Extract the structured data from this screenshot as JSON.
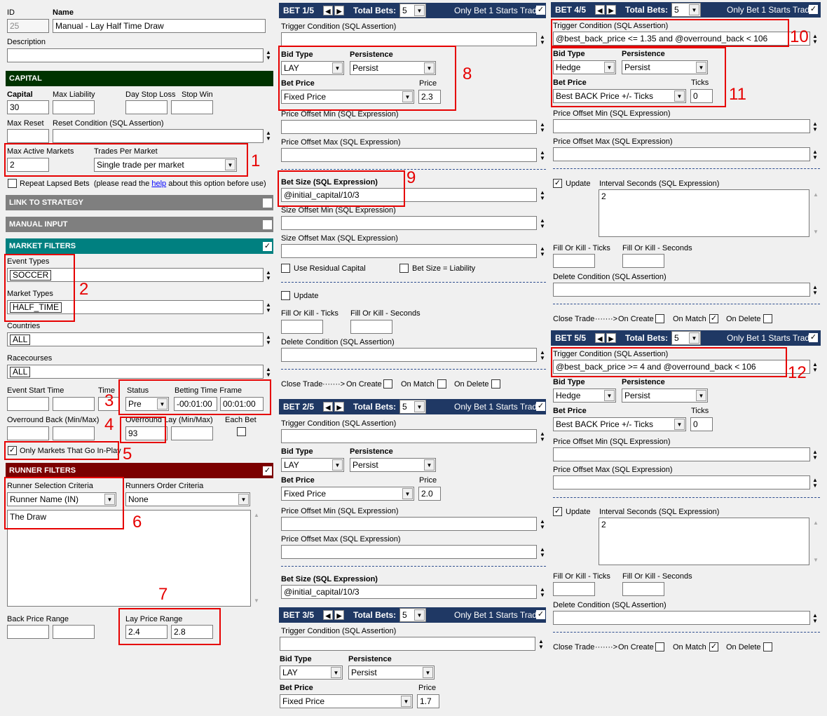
{
  "strategy": {
    "id_label": "ID",
    "id_value": "25",
    "name_label": "Name",
    "name_value": "Manual - Lay Half Time Draw",
    "description_label": "Description",
    "description_value": ""
  },
  "capital": {
    "header": "CAPITAL",
    "capital_label": "Capital",
    "capital_value": "30",
    "max_liability_label": "Max Liability",
    "day_stop_loss_label": "Day Stop Loss",
    "stop_win_label": "Stop Win",
    "max_reset_label": "Max Reset",
    "reset_condition_label": "Reset Condition (SQL Assertion)",
    "max_active_markets_label": "Max Active Markets",
    "max_active_markets_value": "2",
    "trades_per_market_label": "Trades Per Market",
    "trades_per_market_value": "Single trade per market",
    "repeat_label": "Repeat Lapsed Bets",
    "repeat_note_pre": "(please read the",
    "repeat_note_link": "help",
    "repeat_note_post": "about this option before use)"
  },
  "link_header": "LINK TO STRATEGY",
  "manual_header": "MANUAL INPUT",
  "market_filters": {
    "header": "MARKET FILTERS",
    "event_types_label": "Event Types",
    "event_types_value": "SOCCER",
    "market_types_label": "Market Types",
    "market_types_value": "HALF_TIME",
    "countries_label": "Countries",
    "countries_value": "ALL",
    "racecourses_label": "Racecourses",
    "racecourses_value": "ALL",
    "event_start_label": "Event Start Time",
    "time_label": "Time",
    "status_label": "Status",
    "status_value": "Pre",
    "btf_label": "Betting Time Frame",
    "btf_from": "-00:01:00",
    "btf_to": "00:01:00",
    "overround_back_label": "Overround Back (Min/Max)",
    "overround_lay_label": "Overround Lay (Min/Max)",
    "overround_lay_min": "93",
    "each_bet_label": "Each Bet",
    "inplay_label": "Only Markets That Go In-Play"
  },
  "runner_filters": {
    "header": "RUNNER FILTERS",
    "selection_label": "Runner Selection Criteria",
    "selection_value": "Runner Name (IN)",
    "order_label": "Runners Order Criteria",
    "order_value": "None",
    "runners_text": "The Draw",
    "back_range_label": "Back Price Range",
    "lay_range_label": "Lay Price Range",
    "lay_min": "2.4",
    "lay_max": "2.8"
  },
  "common": {
    "total_bets_label": "Total Bets:",
    "total_bets_value": "5",
    "only_bet1": "Only Bet 1 Starts Trade",
    "trigger_label": "Trigger Condition (SQL Assertion)",
    "bid_type_label": "Bid Type",
    "persistence_label": "Persistence",
    "bet_price_label": "Bet Price",
    "price_label": "Price",
    "ticks_label": "Ticks",
    "offset_min_label": "Price Offset Min (SQL Expression)",
    "offset_max_label": "Price Offset Max (SQL Expression)",
    "bet_size_label": "Bet Size (SQL Expression)",
    "size_min_label": "Size Offset Min (SQL Expression)",
    "size_max_label": "Size Offset Max (SQL Expression)",
    "residual_label": "Use Residual Capital",
    "liability_label": "Bet Size = Liability",
    "update_label": "Update",
    "interval_label": "Interval Seconds (SQL Expression)",
    "fok_ticks_label": "Fill Or Kill - Ticks",
    "fok_seconds_label": "Fill Or Kill - Seconds",
    "delete_label": "Delete Condition (SQL Assertion)",
    "close_trade_label": "Close Trade",
    "arrow_dots": "·······>",
    "on_create_label": "On Create",
    "on_match_label": "On Match",
    "on_delete_label": "On Delete"
  },
  "bet1": {
    "title": "BET 1/5",
    "bid_type": "LAY",
    "persistence": "Persist",
    "bet_price": "Fixed Price",
    "price": "2.3",
    "bet_size": "@initial_capital/10/3"
  },
  "bet2": {
    "title": "BET 2/5",
    "bid_type": "LAY",
    "persistence": "Persist",
    "bet_price": "Fixed Price",
    "price": "2.0",
    "bet_size": "@initial_capital/10/3"
  },
  "bet3": {
    "title": "BET 3/5",
    "bid_type": "LAY",
    "persistence": "Persist",
    "bet_price": "Fixed Price",
    "price": "1.7"
  },
  "bet4": {
    "title": "BET 4/5",
    "trigger": "@best_back_price <= 1.35 and @overround_back < 106",
    "bid_type": "Hedge",
    "persistence": "Persist",
    "bet_price": "Best BACK Price +/- Ticks",
    "ticks": "0",
    "interval": "2"
  },
  "bet5": {
    "title": "BET 5/5",
    "trigger": "@best_back_price >= 4 and @overround_back < 106",
    "bid_type": "Hedge",
    "persistence": "Persist",
    "bet_price": "Best BACK Price +/- Ticks",
    "ticks": "0",
    "interval": "2"
  },
  "annotations": [
    "1",
    "2",
    "3",
    "4",
    "5",
    "6",
    "7",
    "8",
    "9",
    "10",
    "11",
    "12"
  ],
  "colors": {
    "capital_header": "#003300",
    "link_header": "#7f7f7f",
    "market_header": "#008080",
    "runner_header": "#7b0000",
    "bet_header": "#1f3864",
    "annotation": "#e60000"
  }
}
